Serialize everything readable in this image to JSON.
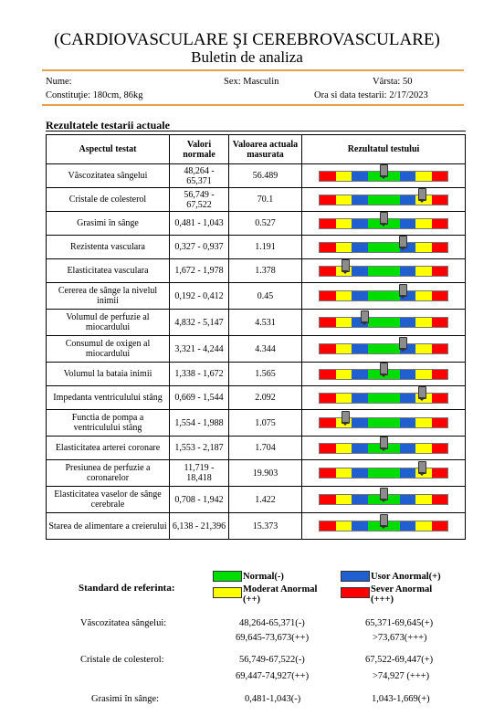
{
  "header": {
    "title": "(CARDIOVASCULARE ŞI CEREBROVASCULARE)",
    "subtitle": "Buletin de analiza"
  },
  "patient": {
    "name_label": "Nume:",
    "name_value": "",
    "sex_label": "Sex: Masculin",
    "age_label": "Vârsta: 50",
    "build_label": "Constituţie: 180cm, 86kg",
    "date_label": "Ora si data testarii: 2/17/2023"
  },
  "section_title": "Rezultatele testarii actuale",
  "table": {
    "headers": [
      "Aspectul testat",
      "Valori normale",
      "Valoarea actuala masurata",
      "Rezultatul testului"
    ],
    "rows": [
      {
        "aspect": "Văscozitatea sângelui",
        "normal": "48,264 - 65,371",
        "value": "56.489",
        "marker": 0.5
      },
      {
        "aspect": "Cristale de colesterol",
        "normal": "56,749 - 67,522",
        "value": "70.1",
        "marker": 0.8
      },
      {
        "aspect": "Grasimi în sânge",
        "normal": "0,481 - 1,043",
        "value": "0.527",
        "marker": 0.5
      },
      {
        "aspect": "Rezistenta vasculara",
        "normal": "0,327 - 0,937",
        "value": "1.191",
        "marker": 0.65
      },
      {
        "aspect": "Elasticitatea vasculara",
        "normal": "1,672 - 1,978",
        "value": "1.378",
        "marker": 0.2
      },
      {
        "aspect": "Cererea de sânge la nivelul inimii",
        "normal": "0,192 - 0,412",
        "value": "0.45",
        "marker": 0.65
      },
      {
        "aspect": "Volumul de perfuzie al miocardului",
        "normal": "4,832 - 5,147",
        "value": "4.531",
        "marker": 0.35
      },
      {
        "aspect": "Consumul de oxigen al miocardului",
        "normal": "3,321 - 4,244",
        "value": "4.344",
        "marker": 0.65
      },
      {
        "aspect": "Volumul la bataia inimii",
        "normal": "1,338 - 1,672",
        "value": "1.565",
        "marker": 0.5
      },
      {
        "aspect": "Impedanta ventriculului stâng",
        "normal": "0,669 - 1,544",
        "value": "2.092",
        "marker": 0.8
      },
      {
        "aspect": "Functia de pompa a ventriculului stâng",
        "normal": "1,554 - 1,988",
        "value": "1.075",
        "marker": 0.2
      },
      {
        "aspect": "Elasticitatea arterei coronare",
        "normal": "1,553 - 2,187",
        "value": "1.704",
        "marker": 0.5
      },
      {
        "aspect": "Presiunea de perfuzie a coronarelor",
        "normal": "11,719 - 18,418",
        "value": "19.903",
        "marker": 0.8
      },
      {
        "aspect": "Elasticitatea vaselor de sânge cerebrale",
        "normal": "0,708 - 1,942",
        "value": "1.422",
        "marker": 0.5
      },
      {
        "aspect": "Starea de alimentare a creierului",
        "normal": "6,138 - 21,396",
        "value": "15.373",
        "marker": 0.5
      }
    ]
  },
  "reference": {
    "label": "Standard de referinta:",
    "legend": {
      "normal": "Normal(-)",
      "usor": "Usor Anormal(+)",
      "moderat_line1": "Moderat Anormal",
      "moderat_line2": "(++)",
      "sever_line1": "Sever Anormal",
      "sever_line2": "(+++)"
    },
    "rows": [
      {
        "name": "Văscozitatea sângelui:",
        "c1": "48,264-65,371(-)",
        "c2": "65,371-69,645(+)",
        "c3": "69,645-73,673(++)",
        "c4": ">73,673(+++)"
      },
      {
        "name": "Cristale de colesterol:",
        "c1": "56,749-67,522(-)",
        "c2": "67,522-69,447(+)",
        "c3": "69,447-74,927(++)",
        "c4": ">74,927 (+++)"
      },
      {
        "name": "Grasimi în sânge:",
        "c1": "0,481-1,043(-)",
        "c2": "1,043-1,669(+)"
      }
    ]
  },
  "colors": {
    "red": "#ff0000",
    "yellow": "#ffff00",
    "blue": "#1f5fd0",
    "green": "#00dd00",
    "accent_rule": "#e8a348"
  }
}
